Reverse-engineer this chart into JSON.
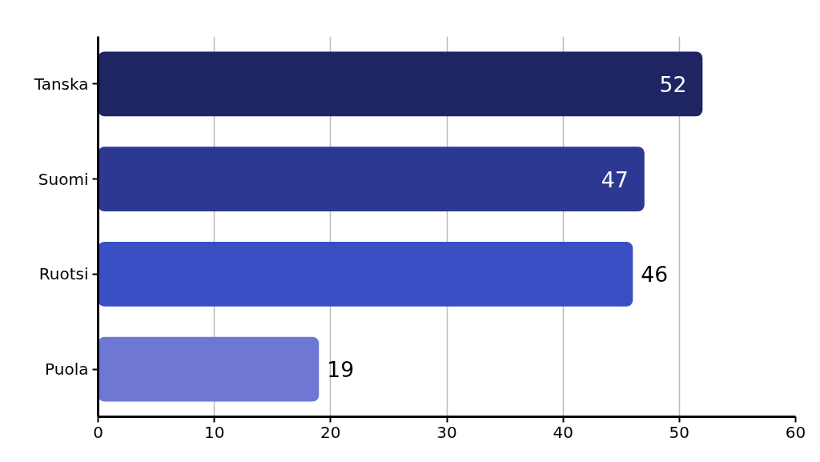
{
  "chart_data": {
    "type": "bar",
    "orientation": "horizontal",
    "categories": [
      "Tanska",
      "Suomi",
      "Ruotsi",
      "Puola"
    ],
    "values": [
      52,
      47,
      46,
      19
    ],
    "colors": [
      "#1f2563",
      "#2d3892",
      "#3a4fc4",
      "#6e78d4"
    ],
    "xlim": [
      0,
      60
    ],
    "xticks": [
      0,
      10,
      20,
      30,
      40,
      50,
      60
    ],
    "grid": "x",
    "data_labels": true
  }
}
